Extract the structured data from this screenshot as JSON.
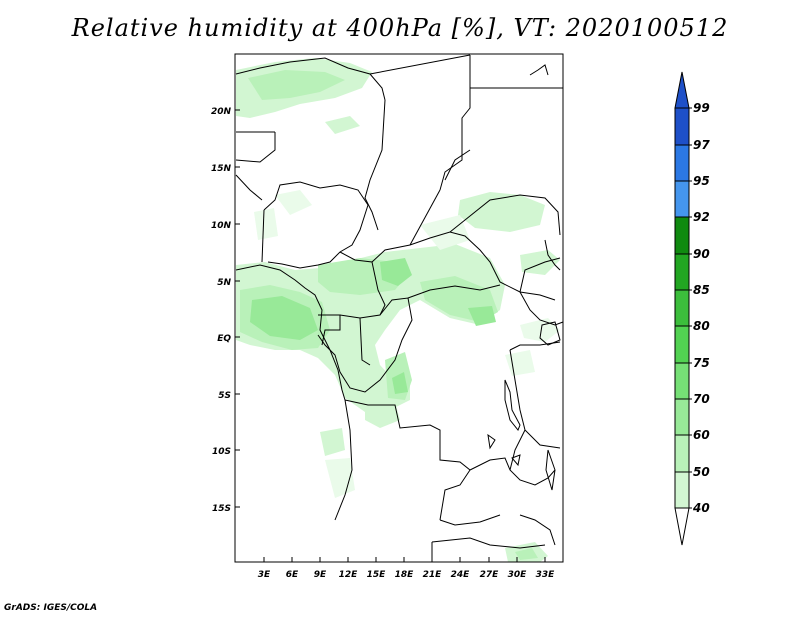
{
  "title": "Relative humidity at 400hPa [%], VT: 2020100512",
  "footer": "GrADS: IGES/COLA",
  "map": {
    "lat_labels": [
      "20N",
      "15N",
      "10N",
      "5N",
      "EQ",
      "5S",
      "10S",
      "15S"
    ],
    "lon_labels": [
      "3E",
      "6E",
      "9E",
      "12E",
      "15E",
      "18E",
      "21E",
      "24E",
      "27E",
      "30E",
      "33E"
    ],
    "lon_range": [
      0,
      35
    ],
    "lat_range": [
      -20,
      25
    ]
  },
  "colorbar": {
    "labels": [
      "99",
      "97",
      "95",
      "92",
      "90",
      "85",
      "80",
      "75",
      "70",
      "60",
      "50",
      "40"
    ],
    "colors": [
      "#1e50c8",
      "#2b78e4",
      "#4596ee",
      "#108a10",
      "#22a622",
      "#3cbe3c",
      "#52d252",
      "#76e076",
      "#98e998",
      "#b9f1b9",
      "#d2f6d2",
      "#eafbea"
    ],
    "arrow_top_color": "#1e50c8",
    "arrow_bottom_color": "#ffffff"
  },
  "humidity_colors": {
    "c40": "#eafbea",
    "c50": "#d2f6d2",
    "c60": "#b9f1b9",
    "c70": "#98e998",
    "c75": "#76e076"
  }
}
